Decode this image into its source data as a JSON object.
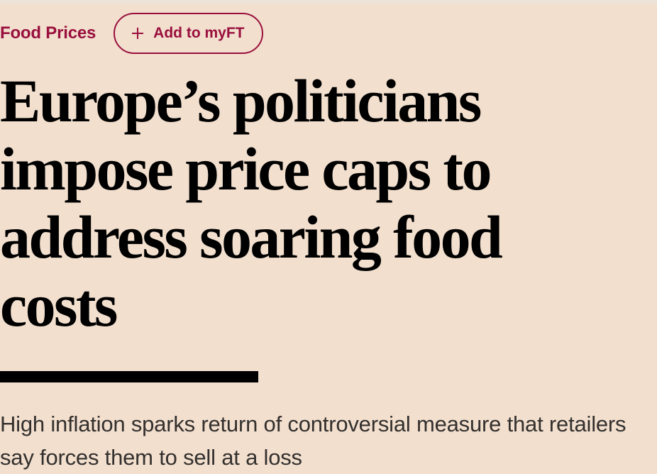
{
  "topic": {
    "label": "Food Prices"
  },
  "myft_button": {
    "icon": "plus-icon",
    "label": "Add to myFT"
  },
  "article": {
    "headline": "Europe’s politicians impose price caps to address soaring food costs",
    "standfirst": "High inflation sparks return of controversial measure that retailers say forces them to sell at a loss"
  },
  "colors": {
    "background": "#f2dfce",
    "accent": "#990f3d",
    "headline": "#000000",
    "standfirst": "#33302e"
  }
}
